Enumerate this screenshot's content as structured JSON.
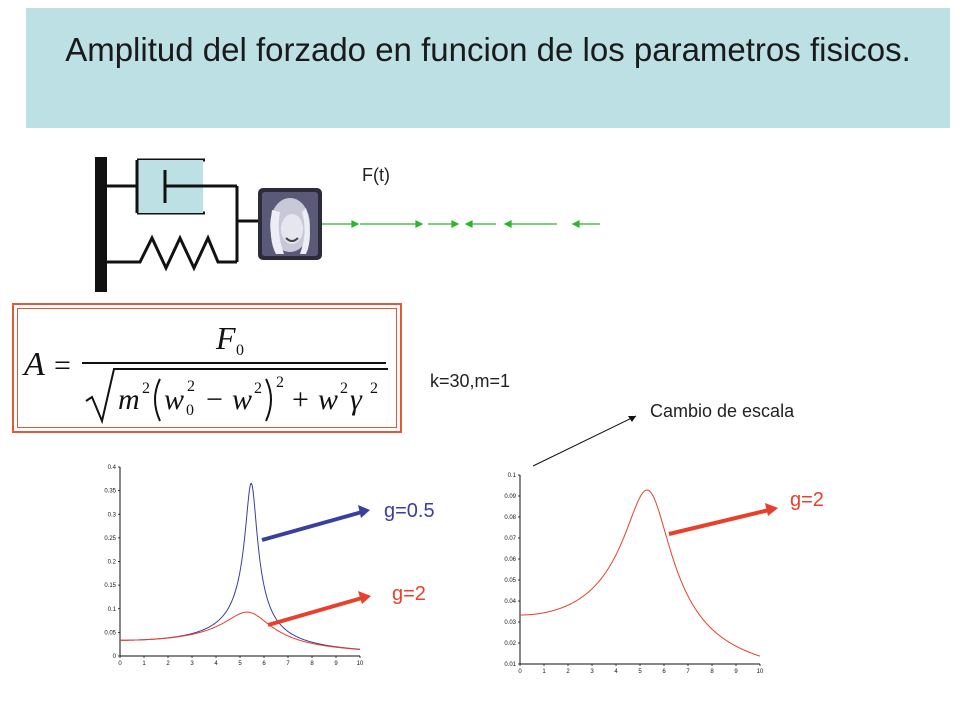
{
  "slide": {
    "title": "Amplitud del forzado en funcion de los parametros fisicos.",
    "force_label": "F(t)",
    "params": "k=30,m=1",
    "scale_note": "Cambio de escala"
  },
  "formula": {
    "lhs": "A",
    "numerator": "F",
    "numerator_sub": "0",
    "m": "m",
    "w": "w",
    "w0_sub": "0",
    "gamma": "γ",
    "sq": "2",
    "minus": "−",
    "plus": "+",
    "equals": "="
  },
  "colors": {
    "title_bg": "#bde0e4",
    "blue": "#3a3f9e",
    "red": "#e8402a",
    "green": "#2db52d",
    "frame": "#e05a3a"
  },
  "chart_data": [
    {
      "type": "line",
      "xlim": [
        0,
        10
      ],
      "ylim": [
        0,
        0.4
      ],
      "xticks": [
        "0",
        "1",
        "2",
        "3",
        "4",
        "5",
        "6",
        "7",
        "8",
        "9",
        "10"
      ],
      "yticks": [
        "0",
        "0.05",
        "0.1",
        "0.15",
        "0.2",
        "0.25",
        "0.3",
        "0.35",
        "0.4"
      ],
      "series": [
        {
          "name": "g=0.5",
          "color": "blue",
          "params": {
            "k": 30,
            "m": 1,
            "g": 0.5
          }
        },
        {
          "name": "g=2",
          "color": "red",
          "params": {
            "k": 30,
            "m": 1,
            "g": 2
          }
        }
      ]
    },
    {
      "type": "line",
      "xlim": [
        0,
        10
      ],
      "ylim": [
        0.01,
        0.1
      ],
      "xticks": [
        "0",
        "1",
        "2",
        "3",
        "4",
        "5",
        "6",
        "7",
        "8",
        "9",
        "10"
      ],
      "yticks": [
        "0.01",
        "0.02",
        "0.03",
        "0.04",
        "0.05",
        "0.06",
        "0.07",
        "0.08",
        "0.09",
        "0.1"
      ],
      "series": [
        {
          "name": "g=2",
          "color": "red",
          "params": {
            "k": 30,
            "m": 1,
            "g": 2
          }
        }
      ]
    }
  ]
}
